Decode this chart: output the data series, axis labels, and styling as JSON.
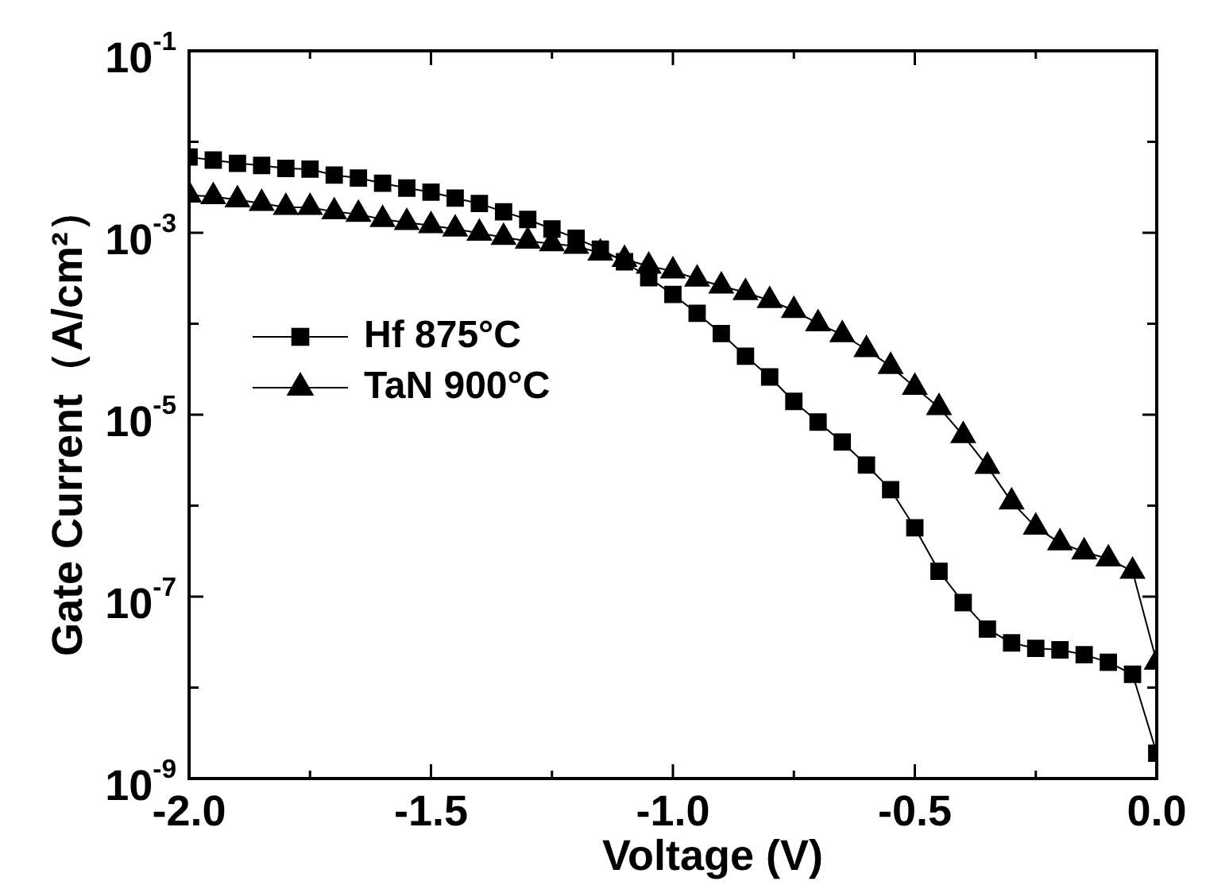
{
  "chart_data": {
    "type": "line",
    "xlabel": "Voltage (V)",
    "ylabel": "Gate Current（A/cm²）",
    "log": "y",
    "grid": false,
    "legend": "left",
    "line_style": "solid",
    "x": [
      -2.0,
      -1.95,
      -1.9,
      -1.85,
      -1.8,
      -1.75,
      -1.7,
      -1.65,
      -1.6,
      -1.55,
      -1.5,
      -1.45,
      -1.4,
      -1.35,
      -1.3,
      -1.25,
      -1.2,
      -1.15,
      -1.1,
      -1.05,
      -1.0,
      -0.95,
      -0.9,
      -0.85,
      -0.8,
      -0.75,
      -0.7,
      -0.65,
      -0.6,
      -0.55,
      -0.5,
      -0.45,
      -0.4,
      -0.35,
      -0.3,
      -0.25,
      -0.2,
      -0.15,
      -0.1,
      -0.05,
      0.0
    ],
    "xlim": [
      -2.0,
      0.0
    ],
    "xticks": [
      {
        "value": -2.0,
        "label": "-2.0"
      },
      {
        "value": -1.75,
        "label": null
      },
      {
        "value": -1.5,
        "label": "-1.5"
      },
      {
        "value": -1.25,
        "label": null
      },
      {
        "value": -1.0,
        "label": "-1.0"
      },
      {
        "value": -0.75,
        "label": null
      },
      {
        "value": -0.5,
        "label": "-0.5"
      },
      {
        "value": -0.25,
        "label": null
      },
      {
        "value": 0.0,
        "label": "0.0"
      }
    ],
    "ylim": [
      1e-09,
      0.1
    ],
    "yticks": [
      {
        "value": 0.1,
        "label": "10$^{-1}$"
      },
      {
        "value": 0.01,
        "label": null
      },
      {
        "value": 0.001,
        "label": "10$^{-3}$"
      },
      {
        "value": 0.0001,
        "label": null
      },
      {
        "value": 1e-05,
        "label": "10$^{-5}$"
      },
      {
        "value": 1e-06,
        "label": null
      },
      {
        "value": 1e-07,
        "label": "10$^{-7}$"
      },
      {
        "value": 1e-08,
        "label": null
      },
      {
        "value": 1e-09,
        "label": "10$^{-9}$"
      }
    ],
    "series": [
      {
        "name": "Hf 875°C",
        "color": "#000000",
        "marker": "square",
        "values": [
          0.0068,
          0.0063,
          0.0058,
          0.0055,
          0.0051,
          0.005,
          0.0043,
          0.004,
          0.0035,
          0.0031,
          0.0028,
          0.0024,
          0.0021,
          0.0017,
          0.0014,
          0.0011,
          0.00087,
          0.00066,
          0.00048,
          0.00032,
          0.00021,
          0.00013,
          7.8e-05,
          4.4e-05,
          2.6e-05,
          1.4e-05,
          8.3e-06,
          5e-06,
          2.8e-06,
          1.5e-06,
          5.7e-07,
          1.9e-07,
          8.6e-08,
          4.4e-08,
          3.1e-08,
          2.7e-08,
          2.6e-08,
          2.3e-08,
          1.9e-08,
          1.4e-08,
          1.9e-09
        ]
      },
      {
        "name": "TaN 900°C",
        "color": "#000000",
        "marker": "triangle",
        "values": [
          0.0026,
          0.0025,
          0.0023,
          0.0021,
          0.0019,
          0.0019,
          0.0017,
          0.0016,
          0.0014,
          0.0013,
          0.0012,
          0.0011,
          0.00099,
          0.00089,
          0.00081,
          0.00076,
          0.00071,
          0.0006,
          0.00051,
          0.00043,
          0.00038,
          0.00031,
          0.00026,
          0.00022,
          0.00018,
          0.00014,
          0.0001,
          7.6e-05,
          5.2e-05,
          3.4e-05,
          2e-05,
          1.2e-05,
          5.9e-06,
          2.7e-06,
          1.1e-06,
          5.8e-07,
          3.9e-07,
          3.1e-07,
          2.6e-07,
          1.9e-07,
          1.9e-08
        ]
      }
    ]
  }
}
